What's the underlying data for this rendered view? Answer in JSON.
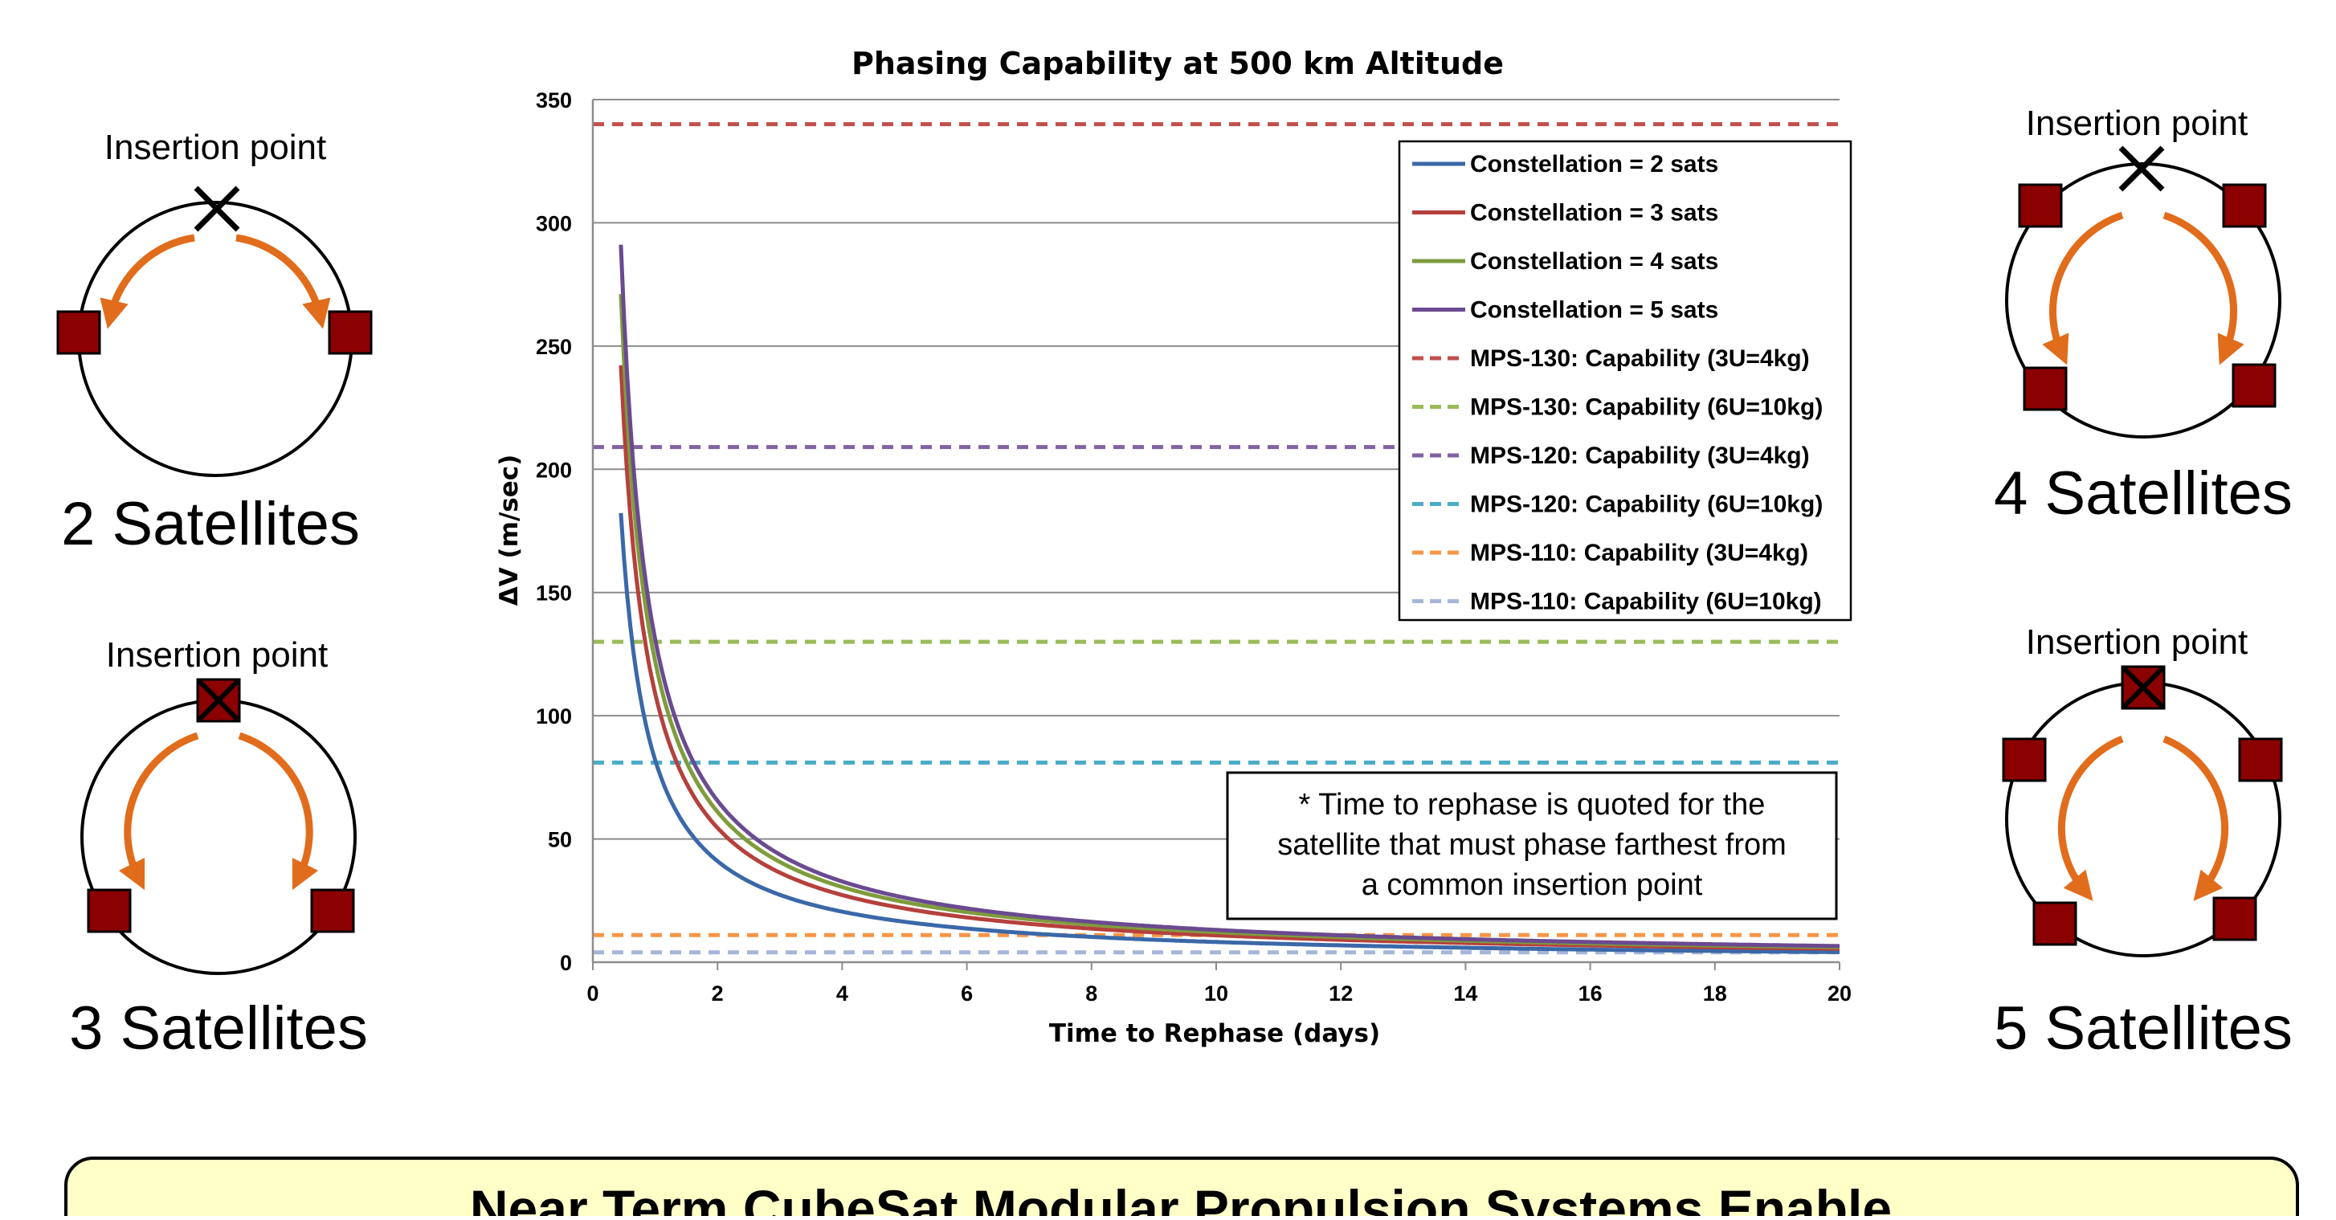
{
  "diagrams": [
    {
      "id": "d2",
      "insertion_label": "Insertion point",
      "caption": "2 Satellites",
      "satellite_count": 2
    },
    {
      "id": "d3",
      "insertion_label": "Insertion point",
      "caption": "3 Satellites",
      "satellite_count": 3
    },
    {
      "id": "d4",
      "insertion_label": "Insertion point",
      "caption": "4 Satellites",
      "satellite_count": 4
    },
    {
      "id": "d5",
      "insertion_label": "Insertion point",
      "caption": "5 Satellites",
      "satellite_count": 5
    }
  ],
  "note": {
    "lines": [
      "* Time to rephase is quoted for the",
      "satellite that must phase farthest from",
      "a common insertion point"
    ]
  },
  "banner": {
    "text": "Near Term CubeSat Modular Propulsion Systems Enable"
  },
  "colors": {
    "satellite_fill": "#8b0000",
    "arrow": "#e06c1c",
    "banner_bg": "#ffffc8"
  },
  "chart_data": {
    "type": "line",
    "title": "Phasing Capability at 500 km Altitude",
    "xlabel": "Time to Rephase (days)",
    "ylabel": "ΔV (m/sec)",
    "xlim": [
      0,
      20
    ],
    "ylim": [
      0,
      350
    ],
    "x_ticks": [
      0,
      2,
      4,
      6,
      8,
      10,
      12,
      14,
      16,
      18,
      20
    ],
    "y_ticks": [
      0,
      50,
      100,
      150,
      200,
      250,
      300,
      350
    ],
    "grid": true,
    "legend_position": "top-right",
    "curves": [
      {
        "name": "Constellation = 2 sats",
        "color": "#3a68a8",
        "k": 82,
        "x_start": 0.45
      },
      {
        "name": "Constellation = 3 sats",
        "color": "#b5403c",
        "k": 109,
        "x_start": 0.45
      },
      {
        "name": "Constellation = 4 sats",
        "color": "#7f9c3c",
        "k": 122,
        "x_start": 0.45
      },
      {
        "name": "Constellation = 5 sats",
        "color": "#6a4a90",
        "k": 131,
        "x_start": 0.45
      }
    ],
    "lines": [
      {
        "name": "MPS-130: Capability (3U=4kg)",
        "color": "#c0504d",
        "value": 340
      },
      {
        "name": "MPS-130: Capability (6U=10kg)",
        "color": "#9bbb59",
        "value": 130
      },
      {
        "name": "MPS-120: Capability (3U=4kg)",
        "color": "#8064a2",
        "value": 209
      },
      {
        "name": "MPS-120: Capability (6U=10kg)",
        "color": "#4bacc6",
        "value": 81
      },
      {
        "name": "MPS-110: Capability (3U=4kg)",
        "color": "#f79646",
        "value": 11
      },
      {
        "name": "MPS-110: Capability (6U=10kg)",
        "color": "#a6b6d8",
        "value": 4
      }
    ]
  }
}
